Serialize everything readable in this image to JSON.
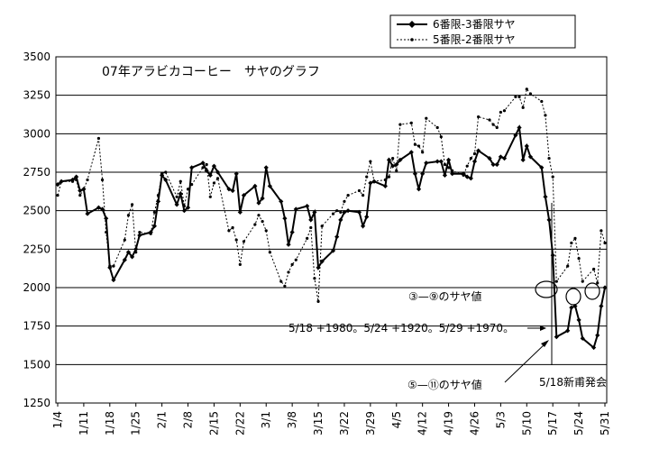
{
  "chart_data": {
    "type": "line",
    "title": "07年アラビカコーヒー　サヤのグラフ",
    "xlabel": "",
    "ylabel": "",
    "ylim": [
      1250,
      3500
    ],
    "yticks": [
      1250,
      1500,
      1750,
      2000,
      2250,
      2500,
      2750,
      3000,
      3250,
      3500
    ],
    "grid": "horizontal",
    "legend_position": "top-right",
    "x_tick_labels": [
      "1/4",
      "1/11",
      "1/18",
      "1/25",
      "2/1",
      "2/8",
      "2/15",
      "2/22",
      "3/1",
      "3/8",
      "3/15",
      "3/22",
      "3/29",
      "4/5",
      "4/12",
      "4/19",
      "4/26",
      "5/3",
      "5/10",
      "5/17",
      "5/24",
      "5/31"
    ],
    "series": [
      {
        "name": "6番限-3番限サヤ",
        "style": "solid",
        "color": "#000000",
        "points": [
          [
            "1/4",
            2670
          ],
          [
            "1/5",
            2690
          ],
          [
            "1/8",
            2700
          ],
          [
            "1/9",
            2720
          ],
          [
            "1/10",
            2630
          ],
          [
            "1/11",
            2640
          ],
          [
            "1/12",
            2480
          ],
          [
            "1/15",
            2520
          ],
          [
            "1/16",
            2510
          ],
          [
            "1/17",
            2450
          ],
          [
            "1/18",
            2130
          ],
          [
            "1/19",
            2050
          ],
          [
            "1/22",
            2180
          ],
          [
            "1/23",
            2230
          ],
          [
            "1/24",
            2200
          ],
          [
            "1/25",
            2250
          ],
          [
            "1/26",
            2340
          ],
          [
            "1/29",
            2360
          ],
          [
            "1/30",
            2400
          ],
          [
            "1/31",
            2560
          ],
          [
            "2/1",
            2730
          ],
          [
            "2/2",
            2700
          ],
          [
            "2/5",
            2540
          ],
          [
            "2/6",
            2610
          ],
          [
            "2/7",
            2500
          ],
          [
            "2/8",
            2520
          ],
          [
            "2/9",
            2780
          ],
          [
            "2/12",
            2810
          ],
          [
            "2/13",
            2760
          ],
          [
            "2/14",
            2730
          ],
          [
            "2/15",
            2790
          ],
          [
            "2/16",
            2750
          ],
          [
            "2/19",
            2640
          ],
          [
            "2/20",
            2630
          ],
          [
            "2/21",
            2740
          ],
          [
            "2/22",
            2490
          ],
          [
            "2/23",
            2600
          ],
          [
            "2/26",
            2660
          ],
          [
            "2/27",
            2550
          ],
          [
            "2/28",
            2580
          ],
          [
            "3/1",
            2780
          ],
          [
            "3/2",
            2660
          ],
          [
            "3/5",
            2560
          ],
          [
            "3/6",
            2450
          ],
          [
            "3/7",
            2280
          ],
          [
            "3/8",
            2360
          ],
          [
            "3/9",
            2510
          ],
          [
            "3/12",
            2530
          ],
          [
            "3/13",
            2440
          ],
          [
            "3/14",
            2490
          ],
          [
            "3/15",
            2130
          ],
          [
            "3/16",
            2170
          ],
          [
            "3/19",
            2240
          ],
          [
            "3/20",
            2330
          ],
          [
            "3/21",
            2440
          ],
          [
            "3/22",
            2490
          ],
          [
            "3/23",
            2500
          ],
          [
            "3/26",
            2490
          ],
          [
            "3/27",
            2400
          ],
          [
            "3/28",
            2460
          ],
          [
            "3/29",
            2680
          ],
          [
            "3/30",
            2690
          ],
          [
            "4/2",
            2660
          ],
          [
            "4/3",
            2830
          ],
          [
            "4/4",
            2790
          ],
          [
            "4/5",
            2800
          ],
          [
            "4/6",
            2830
          ],
          [
            "4/9",
            2880
          ],
          [
            "4/10",
            2740
          ],
          [
            "4/11",
            2640
          ],
          [
            "4/12",
            2740
          ],
          [
            "4/13",
            2810
          ],
          [
            "4/16",
            2820
          ],
          [
            "4/17",
            2820
          ],
          [
            "4/18",
            2730
          ],
          [
            "4/19",
            2830
          ],
          [
            "4/20",
            2740
          ],
          [
            "4/23",
            2740
          ],
          [
            "4/24",
            2720
          ],
          [
            "4/25",
            2710
          ],
          [
            "4/26",
            2820
          ],
          [
            "4/27",
            2890
          ],
          [
            "4/30",
            2840
          ],
          [
            "5/1",
            2800
          ],
          [
            "5/2",
            2800
          ],
          [
            "5/3",
            2850
          ],
          [
            "5/4",
            2840
          ],
          [
            "5/7",
            2990
          ],
          [
            "5/8",
            3040
          ],
          [
            "5/9",
            2830
          ],
          [
            "5/10",
            2920
          ],
          [
            "5/11",
            2850
          ],
          [
            "5/14",
            2780
          ],
          [
            "5/15",
            2590
          ],
          [
            "5/16",
            2440
          ],
          [
            "5/17",
            2210
          ],
          [
            "5/18",
            1680
          ],
          [
            "5/21",
            1720
          ],
          [
            "5/22",
            1870
          ],
          [
            "5/23",
            1880
          ],
          [
            "5/24",
            1790
          ],
          [
            "5/25",
            1670
          ],
          [
            "5/28",
            1610
          ],
          [
            "5/29",
            1690
          ],
          [
            "5/30",
            1880
          ],
          [
            "5/31",
            2000
          ]
        ]
      },
      {
        "name": "5番限-2番限サヤ",
        "style": "dashed",
        "color": "#000000",
        "points": [
          [
            "1/4",
            2600
          ],
          [
            "1/5",
            2690
          ],
          [
            "1/8",
            2690
          ],
          [
            "1/9",
            2700
          ],
          [
            "1/10",
            2600
          ],
          [
            "1/11",
            2640
          ],
          [
            "1/12",
            2700
          ],
          [
            "1/15",
            2970
          ],
          [
            "1/16",
            2700
          ],
          [
            "1/17",
            2360
          ],
          [
            "1/18",
            2140
          ],
          [
            "1/19",
            2140
          ],
          [
            "1/22",
            2310
          ],
          [
            "1/23",
            2470
          ],
          [
            "1/24",
            2540
          ],
          [
            "1/25",
            2230
          ],
          [
            "1/26",
            2360
          ],
          [
            "1/29",
            2350
          ],
          [
            "1/30",
            2490
          ],
          [
            "1/31",
            2600
          ],
          [
            "2/1",
            2740
          ],
          [
            "2/2",
            2750
          ],
          [
            "2/5",
            2590
          ],
          [
            "2/6",
            2690
          ],
          [
            "2/7",
            2530
          ],
          [
            "2/8",
            2640
          ],
          [
            "2/9",
            2670
          ],
          [
            "2/12",
            2780
          ],
          [
            "2/13",
            2800
          ],
          [
            "2/14",
            2590
          ],
          [
            "2/15",
            2680
          ],
          [
            "2/16",
            2710
          ],
          [
            "2/19",
            2370
          ],
          [
            "2/20",
            2390
          ],
          [
            "2/21",
            2310
          ],
          [
            "2/22",
            2150
          ],
          [
            "2/23",
            2300
          ],
          [
            "2/26",
            2410
          ],
          [
            "2/27",
            2470
          ],
          [
            "2/28",
            2430
          ],
          [
            "3/1",
            2370
          ],
          [
            "3/2",
            2230
          ],
          [
            "3/5",
            2040
          ],
          [
            "3/6",
            2010
          ],
          [
            "3/7",
            2100
          ],
          [
            "3/8",
            2150
          ],
          [
            "3/9",
            2180
          ],
          [
            "3/12",
            2320
          ],
          [
            "3/13",
            2390
          ],
          [
            "3/14",
            2060
          ],
          [
            "3/15",
            1910
          ],
          [
            "3/16",
            2400
          ],
          [
            "3/19",
            2480
          ],
          [
            "3/20",
            2500
          ],
          [
            "3/21",
            2490
          ],
          [
            "3/22",
            2560
          ],
          [
            "3/23",
            2600
          ],
          [
            "3/26",
            2630
          ],
          [
            "3/27",
            2600
          ],
          [
            "3/28",
            2720
          ],
          [
            "3/29",
            2820
          ],
          [
            "3/30",
            2690
          ],
          [
            "4/2",
            2700
          ],
          [
            "4/3",
            2720
          ],
          [
            "4/4",
            2840
          ],
          [
            "4/5",
            2760
          ],
          [
            "4/6",
            3060
          ],
          [
            "4/9",
            3070
          ],
          [
            "4/10",
            2930
          ],
          [
            "4/11",
            2920
          ],
          [
            "4/12",
            2880
          ],
          [
            "4/13",
            3100
          ],
          [
            "4/16",
            3040
          ],
          [
            "4/17",
            2980
          ],
          [
            "4/18",
            2800
          ],
          [
            "4/19",
            2780
          ],
          [
            "4/20",
            2760
          ],
          [
            "4/23",
            2730
          ],
          [
            "4/24",
            2790
          ],
          [
            "4/25",
            2840
          ],
          [
            "4/26",
            2870
          ],
          [
            "4/27",
            3110
          ],
          [
            "4/30",
            3090
          ],
          [
            "5/1",
            3060
          ],
          [
            "5/2",
            3040
          ],
          [
            "5/3",
            3140
          ],
          [
            "5/4",
            3150
          ],
          [
            "5/7",
            3240
          ],
          [
            "5/8",
            3240
          ],
          [
            "5/9",
            3170
          ],
          [
            "5/10",
            3290
          ],
          [
            "5/11",
            3260
          ],
          [
            "5/14",
            3210
          ],
          [
            "5/15",
            3120
          ],
          [
            "5/16",
            2840
          ],
          [
            "5/17",
            2720
          ],
          [
            "5/18",
            2040
          ],
          [
            "5/21",
            2140
          ],
          [
            "5/22",
            2290
          ],
          [
            "5/23",
            2320
          ],
          [
            "5/24",
            2190
          ],
          [
            "5/25",
            2040
          ],
          [
            "5/28",
            2120
          ],
          [
            "5/29",
            2030
          ],
          [
            "5/30",
            2370
          ],
          [
            "5/31",
            2290
          ]
        ]
      }
    ],
    "annotations": {
      "circled_label": "③—⑨のサヤ値",
      "values_note": "5/18 +1980。5/24 +1920。5/29 +1970。",
      "circled_label_2": "⑤—⑪のサヤ値",
      "event_label": "5/18新甫発会"
    }
  }
}
